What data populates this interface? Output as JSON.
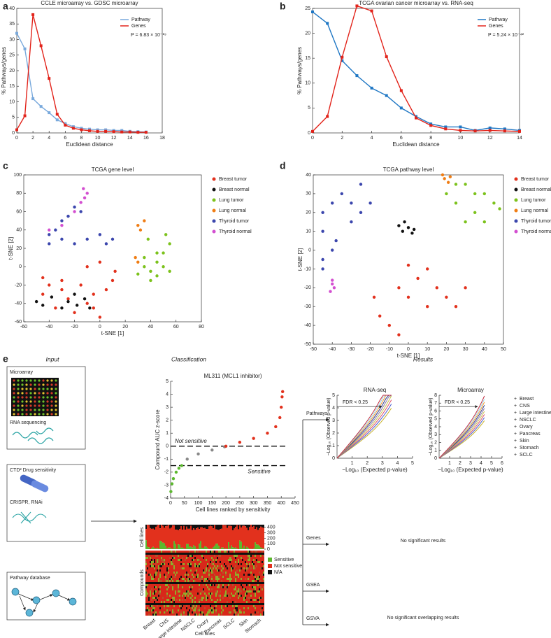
{
  "chart_data": [
    {
      "type": "line",
      "label": "a",
      "title": "CCLE microarray vs. GDSC microarray",
      "xlabel": "Euclidean distance",
      "ylabel": "% Pathways/genes",
      "box": true,
      "legend": "upper right",
      "annotation": "P = 6.83 × 10⁻¹⁹",
      "x": [
        0,
        1,
        2,
        3,
        4,
        5,
        6,
        7,
        8,
        9,
        10,
        11,
        12,
        13,
        14,
        15,
        16
      ],
      "xlim": [
        0,
        18
      ],
      "xticks": [
        0,
        2,
        4,
        6,
        8,
        10,
        12,
        14,
        16,
        18
      ],
      "ylim": [
        0,
        40
      ],
      "yticks": [
        0,
        5,
        10,
        15,
        20,
        25,
        30,
        35,
        40
      ],
      "series": [
        {
          "name": "Pathway",
          "color": "#79a9dc",
          "values": [
            32,
            27,
            11,
            8.5,
            6.5,
            4.2,
            3,
            2,
            1.5,
            1.2,
            1,
            1,
            0.8,
            0.8,
            0.5,
            0.4,
            0.3
          ]
        },
        {
          "name": "Genes",
          "color": "#e2231a",
          "values": [
            1,
            5.5,
            38,
            28,
            17.5,
            6,
            2.5,
            1.5,
            1,
            0.7,
            0.5,
            0.5,
            0.4,
            0.3,
            0.3,
            0.2,
            0.2
          ]
        }
      ]
    },
    {
      "type": "line",
      "label": "b",
      "title": "TCGA ovarian cancer microarray vs. RNA-seq",
      "xlabel": "Euclidean distance",
      "ylabel": "% Pathways/genes",
      "box": true,
      "legend": "upper right",
      "annotation": "P = 5.24 × 10⁻⁴²",
      "x": [
        0,
        1,
        2,
        3,
        4,
        5,
        6,
        7,
        8,
        9,
        10,
        11,
        12,
        13,
        14
      ],
      "xlim": [
        0,
        14
      ],
      "xticks": [
        0,
        2,
        4,
        6,
        8,
        10,
        12,
        14
      ],
      "ylim": [
        0,
        25
      ],
      "yticks": [
        0,
        5,
        10,
        15,
        20,
        25
      ],
      "series": [
        {
          "name": "Pathway",
          "color": "#1f77c4",
          "values": [
            24.3,
            22,
            14.5,
            11.5,
            9,
            7.5,
            5,
            3.3,
            1.8,
            1.2,
            1.2,
            0.5,
            1,
            0.8,
            0.5
          ]
        },
        {
          "name": "Genes",
          "color": "#e2231a",
          "values": [
            0.3,
            3.3,
            15.2,
            25.5,
            24.5,
            15.3,
            8.5,
            3,
            1.5,
            0.8,
            0.5,
            0.4,
            0.5,
            0.4,
            0.3
          ]
        }
      ]
    },
    {
      "type": "scatter",
      "label": "c",
      "title": "TCGA gene level",
      "xlabel": "t-SNE [1]",
      "ylabel": "t-SNE [2]",
      "box": true,
      "legend": "outside right",
      "xlim": [
        -60,
        80
      ],
      "xticks": [
        -60,
        -40,
        -20,
        0,
        20,
        40,
        60,
        80
      ],
      "ylim": [
        -60,
        100
      ],
      "yticks": [
        -60,
        -40,
        -20,
        0,
        20,
        40,
        60,
        80,
        100
      ],
      "series": [
        {
          "name": "Breast tumor",
          "color": "#e2311d",
          "x": [
            -45,
            -40,
            -35,
            -30,
            -25,
            -20,
            -15,
            -10,
            -5,
            0,
            5,
            10,
            -30,
            -5,
            12,
            -45,
            -10,
            0
          ],
          "values": [
            -30,
            -20,
            -45,
            -25,
            -35,
            -50,
            -20,
            -40,
            -30,
            -55,
            -25,
            -15,
            -15,
            -45,
            -5,
            -12,
            0,
            5
          ]
        },
        {
          "name": "Breast normal",
          "color": "#111111",
          "x": [
            -50,
            -45,
            -38,
            -30,
            -25,
            -18,
            -12,
            -8,
            -20
          ],
          "values": [
            -38,
            -42,
            -33,
            -45,
            -38,
            -42,
            -35,
            -45,
            -30
          ]
        },
        {
          "name": "Lung tumor",
          "color": "#7cc21c",
          "x": [
            30,
            35,
            40,
            45,
            50,
            55,
            45,
            40,
            50,
            55,
            35,
            45,
            38,
            52
          ],
          "values": [
            -8,
            0,
            -5,
            5,
            0,
            -5,
            15,
            -15,
            15,
            25,
            10,
            -10,
            30,
            35
          ]
        },
        {
          "name": "Lung normal",
          "color": "#f07d14",
          "x": [
            30,
            32,
            35,
            28,
            30
          ],
          "values": [
            45,
            40,
            50,
            10,
            5
          ]
        },
        {
          "name": "Thyroid tumor",
          "color": "#3b46ad",
          "x": [
            -40,
            -30,
            -20,
            -10,
            0,
            10,
            -35,
            -25,
            -20,
            -15,
            -40,
            5,
            -30
          ],
          "values": [
            35,
            30,
            25,
            30,
            35,
            30,
            40,
            55,
            65,
            60,
            25,
            25,
            50
          ]
        },
        {
          "name": "Thyroid normal",
          "color": "#d34fd0",
          "x": [
            -15,
            -12,
            -10,
            -13,
            -20,
            -30,
            -40
          ],
          "values": [
            70,
            75,
            80,
            85,
            60,
            45,
            40
          ]
        }
      ]
    },
    {
      "type": "scatter",
      "label": "d",
      "title": "TCGA pathway level",
      "xlabel": "t-SNE [1]",
      "ylabel": "t-SNE [2]",
      "box": true,
      "legend": "outside right",
      "xlim": [
        -50,
        50
      ],
      "xticks": [
        -50,
        -40,
        -30,
        -20,
        -10,
        0,
        10,
        20,
        30,
        40,
        50
      ],
      "ylim": [
        -50,
        40
      ],
      "yticks": [
        -50,
        -40,
        -30,
        -20,
        -10,
        0,
        10,
        20,
        30,
        40
      ],
      "series": [
        {
          "name": "Breast tumor",
          "color": "#e2311d",
          "x": [
            -15,
            -10,
            -5,
            0,
            5,
            10,
            15,
            20,
            25,
            10,
            -5,
            0,
            30,
            -18
          ],
          "values": [
            -35,
            -40,
            -20,
            -25,
            -15,
            -30,
            -20,
            -25,
            -30,
            -10,
            -45,
            -8,
            -20,
            -25
          ]
        },
        {
          "name": "Breast normal",
          "color": "#111111",
          "x": [
            -5,
            -3,
            0,
            2,
            -2,
            3
          ],
          "values": [
            13,
            10,
            12,
            9,
            15,
            11
          ]
        },
        {
          "name": "Lung tumor",
          "color": "#7cc21c",
          "x": [
            20,
            25,
            30,
            35,
            40,
            45,
            30,
            25,
            40,
            35,
            48
          ],
          "values": [
            30,
            25,
            35,
            20,
            30,
            25,
            15,
            35,
            15,
            30,
            22
          ]
        },
        {
          "name": "Lung normal",
          "color": "#f07d14",
          "x": [
            19,
            21,
            18,
            22
          ],
          "values": [
            38,
            36,
            40,
            39
          ]
        },
        {
          "name": "Thyroid tumor",
          "color": "#3b46ad",
          "x": [
            -45,
            -40,
            -35,
            -30,
            -25,
            -20,
            -45,
            -40,
            -45,
            -30,
            -25,
            -38,
            -45
          ],
          "values": [
            20,
            25,
            30,
            25,
            35,
            25,
            10,
            0,
            -5,
            15,
            20,
            5,
            -10
          ]
        },
        {
          "name": "Thyroid normal",
          "color": "#d34fd0",
          "x": [
            -40,
            -39,
            -41,
            -40
          ],
          "values": [
            -18,
            -20,
            -22,
            -16
          ]
        }
      ]
    },
    {
      "type": "scatter",
      "title": "ML311 (MCL1 inhibitor)",
      "xlabel": "Cell lines ranked by sensitivity",
      "ylabel": "Compound AUC z-score",
      "box": false,
      "xlim": [
        0,
        450
      ],
      "xticks": [
        0,
        50,
        100,
        150,
        200,
        250,
        300,
        350,
        400,
        450
      ],
      "ylim": [
        -4,
        5
      ],
      "yticks": [
        -4,
        -3,
        -2,
        -1,
        0,
        1,
        2,
        3,
        4,
        5
      ],
      "hlines": [
        0,
        -1.5
      ],
      "annotations": [
        "Not sensitive",
        "Sensitive"
      ],
      "series": [
        {
          "color": "#5cb82e",
          "x": [
            1,
            5,
            10,
            20,
            30,
            40
          ],
          "values": [
            -3.5,
            -2.9,
            -2.5,
            -2,
            -1.7,
            -1.5
          ]
        },
        {
          "color": "#888888",
          "x": [
            60,
            100,
            150,
            195
          ],
          "values": [
            -1,
            -0.6,
            -0.3,
            -0.05
          ]
        },
        {
          "color": "#e2311d",
          "x": [
            200,
            250,
            300,
            350,
            380,
            395,
            400,
            403,
            405
          ],
          "values": [
            0,
            0.3,
            0.6,
            1,
            1.5,
            2.2,
            3,
            3.8,
            4.2
          ]
        }
      ]
    },
    {
      "type": "qq",
      "title": "RNA-seq",
      "xlabel": "−Log₁₀ (Expected p-value)",
      "ylabel": "−Log₁₀ (Observed p-value)",
      "annotation": "FDR < 0.25",
      "box": false,
      "xlim": [
        0,
        5
      ],
      "xticks": [
        1,
        2,
        3,
        4,
        5
      ],
      "ylim": [
        0,
        5
      ],
      "yticks": [
        0,
        1,
        2,
        3,
        4,
        5
      ]
    },
    {
      "type": "qq",
      "title": "Microarray",
      "xlabel": "−Log₁₀ (Expected p-value)",
      "ylabel": "−Log₁₀ (Observed p-value)",
      "annotation": "FDR < 0.25",
      "box": false,
      "xlim": [
        0,
        6
      ],
      "xticks": [
        1,
        2,
        3,
        4,
        5,
        6
      ],
      "ylim": [
        0,
        8
      ],
      "yticks": [
        0,
        1,
        2,
        3,
        4,
        5,
        6,
        7,
        8
      ]
    }
  ],
  "panel_e": {
    "label": "e",
    "headers": [
      "Input",
      "Classification",
      "Results"
    ],
    "input": {
      "microarray": "Microarray",
      "rnaseq": "RNA sequencing",
      "drug": "CTD² Drug sensitivity",
      "crispr": "CRISPR, RNAi",
      "pathway": "Pathway database"
    },
    "heatmap": {
      "bar_label": "Cell lines",
      "ylabel": "Compounds",
      "xlabel": "Cell lines",
      "ylim": [
        0,
        450
      ],
      "yticks": [
        0,
        100,
        200,
        300,
        400
      ],
      "categories": [
        "Breast",
        "CNS",
        "Large intestine",
        "NSCLC",
        "Ovary",
        "Pancreas",
        "SCLC",
        "Skin",
        "Stomach"
      ],
      "legend": [
        {
          "name": "Sensitive",
          "color": "#5cb82e"
        },
        {
          "name": "Not sensitive",
          "color": "#e2311d"
        },
        {
          "name": "N/A",
          "color": "#111111"
        }
      ]
    },
    "results": {
      "rows": [
        "Pathways",
        "Genes",
        "GSEA",
        "GSVA"
      ],
      "genes_note": "No significant results",
      "gsva_note": "No significant overlapping results",
      "legend": [
        {
          "name": "Breast",
          "color": "#c8b22a"
        },
        {
          "name": "CNS",
          "color": "#4a5fd0"
        },
        {
          "name": "Large intestine",
          "color": "#e0506a"
        },
        {
          "name": "NSCLC",
          "color": "#c9c34a"
        },
        {
          "name": "Ovary",
          "color": "#8a7aa8"
        },
        {
          "name": "Pancreas",
          "color": "#2c3e8c"
        },
        {
          "name": "Skin",
          "color": "#f29a2e"
        },
        {
          "name": "Stomach",
          "color": "#9fd6e8"
        },
        {
          "name": "SCLC",
          "color": "#c0283c"
        }
      ]
    }
  }
}
